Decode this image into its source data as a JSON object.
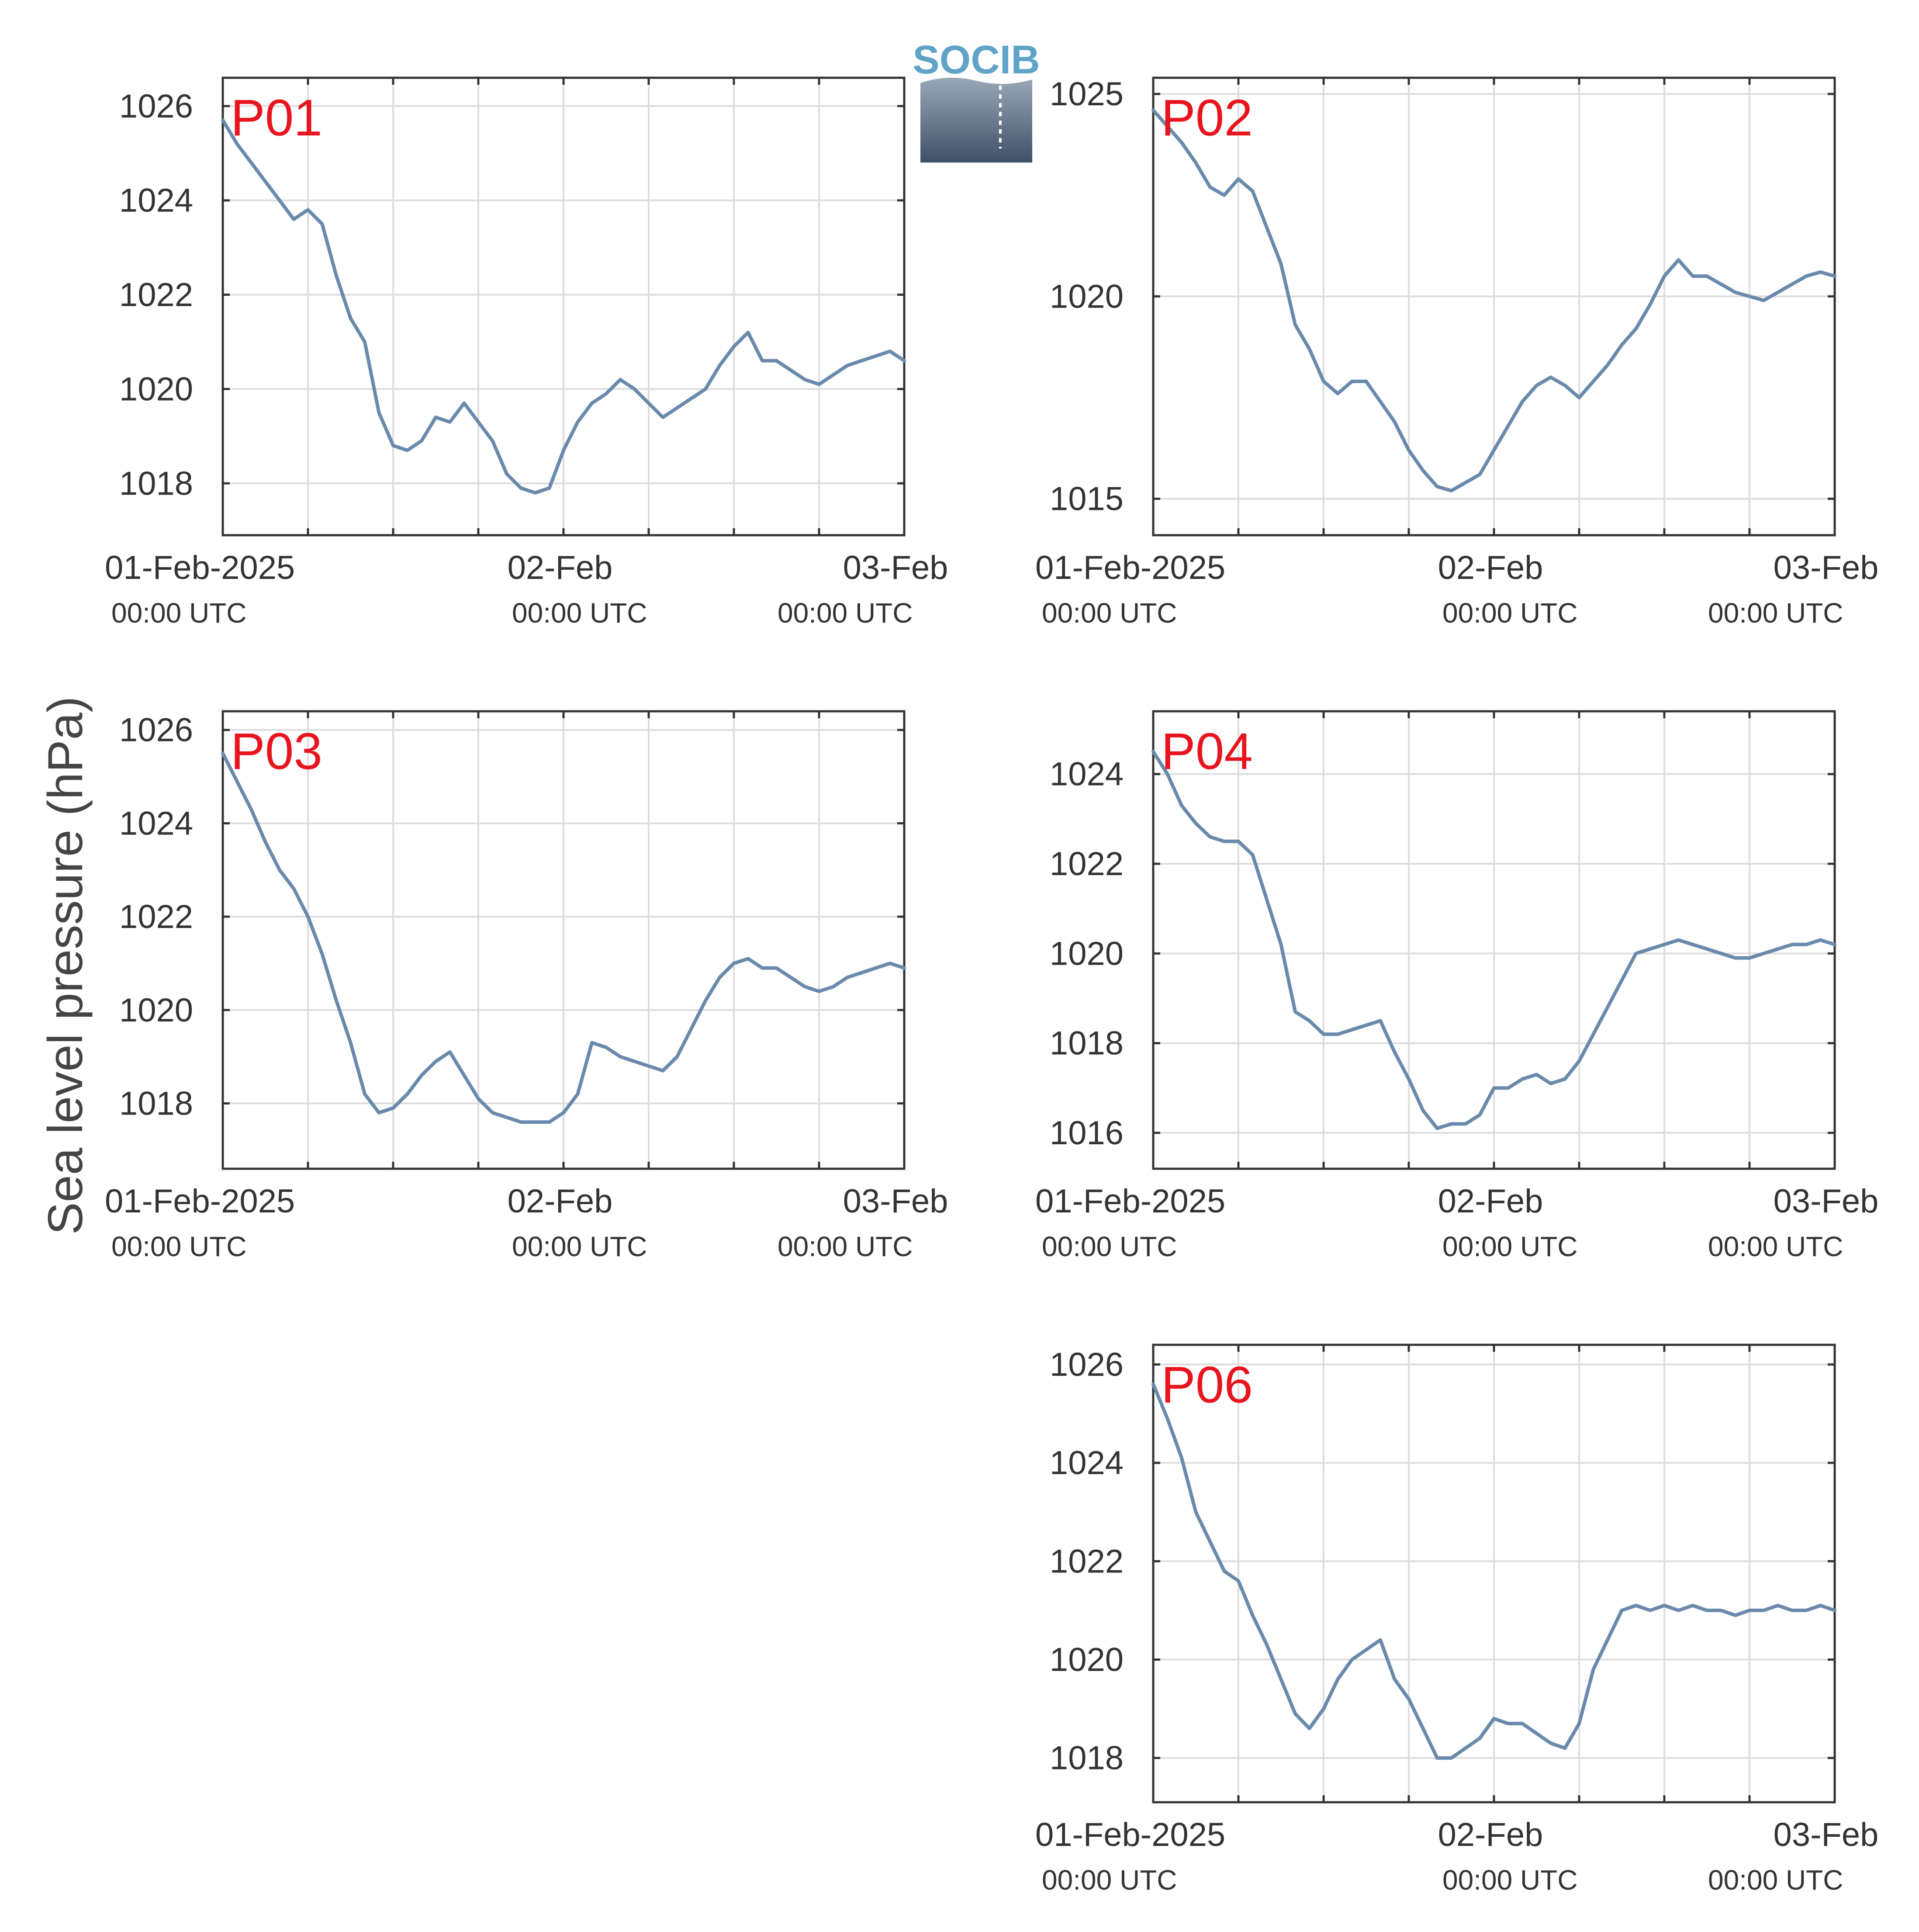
{
  "ylabel": "Sea level pressure (hPa)",
  "logo": {
    "text": "SOCIB",
    "colors": {
      "text": "#5fa4c8",
      "top": "#9aa8b8",
      "bottom": "#3e5068"
    }
  },
  "colors": {
    "line": "#6a8aac",
    "panel_label": "#e8141e",
    "grid": "#dddddd",
    "axes": "#333333"
  },
  "x_axis": {
    "range_hours": [
      0,
      48
    ],
    "labels": [
      {
        "main": "01-Feb-2025",
        "sub": "00:00 UTC"
      },
      {
        "main": "02-Feb",
        "sub": "00:00 UTC"
      },
      {
        "main": "03-Feb",
        "sub": "00:00 UTC"
      }
    ]
  },
  "chart_data": [
    {
      "type": "line",
      "name": "P01",
      "x_unit": "hours since 01-Feb-2025 00:00 UTC",
      "grid": true,
      "ylim": [
        1016.9,
        1026.6
      ],
      "yticks": [
        1018,
        1020,
        1022,
        1024,
        1026
      ],
      "x": [
        0,
        1,
        2,
        3,
        4,
        5,
        6,
        7,
        8,
        9,
        10,
        11,
        12,
        13,
        14,
        15,
        16,
        17,
        18,
        19,
        20,
        21,
        22,
        23,
        24,
        25,
        26,
        27,
        28,
        29,
        30,
        31,
        32,
        33,
        34,
        35,
        36,
        37,
        38,
        39,
        40,
        41,
        42,
        43,
        44,
        45,
        46,
        47,
        48
      ],
      "y": [
        1025.7,
        1025.2,
        1024.8,
        1024.4,
        1024.0,
        1023.6,
        1023.8,
        1023.5,
        1022.4,
        1021.5,
        1021.0,
        1019.5,
        1018.8,
        1018.7,
        1018.9,
        1019.4,
        1019.3,
        1019.7,
        1019.3,
        1018.9,
        1018.2,
        1017.9,
        1017.8,
        1017.9,
        1018.7,
        1019.3,
        1019.7,
        1019.9,
        1020.2,
        1020.0,
        1019.7,
        1019.4,
        1019.6,
        1019.8,
        1020.0,
        1020.5,
        1020.9,
        1021.2,
        1020.6,
        1020.6,
        1020.4,
        1020.2,
        1020.1,
        1020.3,
        1020.5,
        1020.6,
        1020.7,
        1020.8,
        1020.6
      ]
    },
    {
      "type": "line",
      "name": "P02",
      "x_unit": "hours since 01-Feb-2025 00:00 UTC",
      "grid": true,
      "ylim": [
        1014.1,
        1025.4
      ],
      "yticks": [
        1015,
        1020,
        1025
      ],
      "x": [
        0,
        1,
        2,
        3,
        4,
        5,
        6,
        7,
        8,
        9,
        10,
        11,
        12,
        13,
        14,
        15,
        16,
        17,
        18,
        19,
        20,
        21,
        22,
        23,
        24,
        25,
        26,
        27,
        28,
        29,
        30,
        31,
        32,
        33,
        34,
        35,
        36,
        37,
        38,
        39,
        40,
        41,
        42,
        43,
        44,
        45,
        46,
        47,
        48
      ],
      "y": [
        1024.6,
        1024.2,
        1023.8,
        1023.3,
        1022.7,
        1022.5,
        1022.9,
        1022.6,
        1021.7,
        1020.8,
        1019.3,
        1018.7,
        1017.9,
        1017.6,
        1017.9,
        1017.9,
        1017.4,
        1016.9,
        1016.2,
        1015.7,
        1015.3,
        1015.2,
        1015.4,
        1015.6,
        1016.2,
        1016.8,
        1017.4,
        1017.8,
        1018.0,
        1017.8,
        1017.5,
        1017.9,
        1018.3,
        1018.8,
        1019.2,
        1019.8,
        1020.5,
        1020.9,
        1020.5,
        1020.5,
        1020.3,
        1020.1,
        1020.0,
        1019.9,
        1020.1,
        1020.3,
        1020.5,
        1020.6,
        1020.5
      ]
    },
    {
      "type": "line",
      "name": "P03",
      "x_unit": "hours since 01-Feb-2025 00:00 UTC",
      "grid": true,
      "ylim": [
        1016.6,
        1026.4
      ],
      "yticks": [
        1018,
        1020,
        1022,
        1024,
        1026
      ],
      "x": [
        0,
        1,
        2,
        3,
        4,
        5,
        6,
        7,
        8,
        9,
        10,
        11,
        12,
        13,
        14,
        15,
        16,
        17,
        18,
        19,
        20,
        21,
        22,
        23,
        24,
        25,
        26,
        27,
        28,
        29,
        30,
        31,
        32,
        33,
        34,
        35,
        36,
        37,
        38,
        39,
        40,
        41,
        42,
        43,
        44,
        45,
        46,
        47,
        48
      ],
      "y": [
        1025.5,
        1024.9,
        1024.3,
        1023.6,
        1023.0,
        1022.6,
        1022.0,
        1021.2,
        1020.2,
        1019.3,
        1018.2,
        1017.8,
        1017.9,
        1018.2,
        1018.6,
        1018.9,
        1019.1,
        1018.6,
        1018.1,
        1017.8,
        1017.7,
        1017.6,
        1017.6,
        1017.6,
        1017.8,
        1018.2,
        1019.3,
        1019.2,
        1019.0,
        1018.9,
        1018.8,
        1018.7,
        1019.0,
        1019.6,
        1020.2,
        1020.7,
        1021.0,
        1021.1,
        1020.9,
        1020.9,
        1020.7,
        1020.5,
        1020.4,
        1020.5,
        1020.7,
        1020.8,
        1020.9,
        1021.0,
        1020.9
      ]
    },
    {
      "type": "line",
      "name": "P04",
      "x_unit": "hours since 01-Feb-2025 00:00 UTC",
      "grid": true,
      "ylim": [
        1015.2,
        1025.4
      ],
      "yticks": [
        1016,
        1018,
        1020,
        1022,
        1024
      ],
      "x": [
        0,
        1,
        2,
        3,
        4,
        5,
        6,
        7,
        8,
        9,
        10,
        11,
        12,
        13,
        14,
        15,
        16,
        17,
        18,
        19,
        20,
        21,
        22,
        23,
        24,
        25,
        26,
        27,
        28,
        29,
        30,
        31,
        32,
        33,
        34,
        35,
        36,
        37,
        38,
        39,
        40,
        41,
        42,
        43,
        44,
        45,
        46,
        47,
        48
      ],
      "y": [
        1024.5,
        1024.0,
        1023.3,
        1022.9,
        1022.6,
        1022.5,
        1022.5,
        1022.2,
        1021.2,
        1020.2,
        1018.7,
        1018.5,
        1018.2,
        1018.2,
        1018.3,
        1018.4,
        1018.5,
        1017.8,
        1017.2,
        1016.5,
        1016.1,
        1016.2,
        1016.2,
        1016.4,
        1017.0,
        1017.0,
        1017.2,
        1017.3,
        1017.1,
        1017.2,
        1017.6,
        1018.2,
        1018.8,
        1019.4,
        1020.0,
        1020.1,
        1020.2,
        1020.3,
        1020.2,
        1020.1,
        1020.0,
        1019.9,
        1019.9,
        1020.0,
        1020.1,
        1020.2,
        1020.2,
        1020.3,
        1020.2
      ]
    },
    {
      "type": "line",
      "name": "P06",
      "x_unit": "hours since 01-Feb-2025 00:00 UTC",
      "grid": true,
      "ylim": [
        1017.1,
        1026.4
      ],
      "yticks": [
        1018,
        1020,
        1022,
        1024,
        1026
      ],
      "x": [
        0,
        1,
        2,
        3,
        4,
        5,
        6,
        7,
        8,
        9,
        10,
        11,
        12,
        13,
        14,
        15,
        16,
        17,
        18,
        19,
        20,
        21,
        22,
        23,
        24,
        25,
        26,
        27,
        28,
        29,
        30,
        31,
        32,
        33,
        34,
        35,
        36,
        37,
        38,
        39,
        40,
        41,
        42,
        43,
        44,
        45,
        46,
        47,
        48
      ],
      "y": [
        1025.6,
        1024.9,
        1024.1,
        1023.0,
        1022.4,
        1021.8,
        1021.6,
        1020.9,
        1020.3,
        1019.6,
        1018.9,
        1018.6,
        1019.0,
        1019.6,
        1020.0,
        1020.2,
        1020.4,
        1019.6,
        1019.2,
        1018.6,
        1018.0,
        1018.0,
        1018.2,
        1018.4,
        1018.8,
        1018.7,
        1018.7,
        1018.5,
        1018.3,
        1018.2,
        1018.7,
        1019.8,
        1020.4,
        1021.0,
        1021.1,
        1021.0,
        1021.1,
        1021.0,
        1021.1,
        1021.0,
        1021.0,
        1020.9,
        1021.0,
        1021.0,
        1021.1,
        1021.0,
        1021.0,
        1021.1,
        1021.0
      ]
    }
  ]
}
